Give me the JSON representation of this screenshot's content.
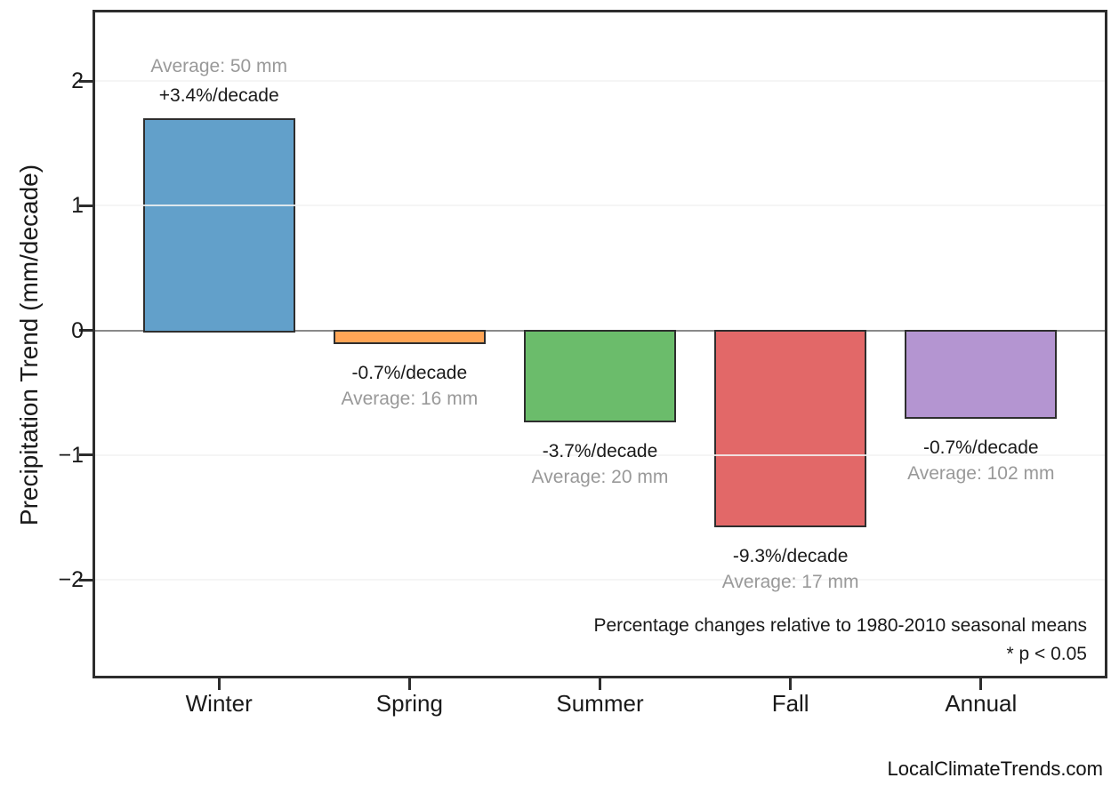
{
  "footer": {
    "watermark": "LocalClimateTrends.com"
  },
  "chart_data": {
    "type": "bar",
    "title": "",
    "xlabel": "",
    "ylabel": "Precipitation Trend (mm/decade)",
    "categories": [
      "Winter",
      "Spring",
      "Summer",
      "Fall",
      "Annual"
    ],
    "values": [
      1.7,
      -0.11,
      -0.74,
      -1.58,
      -0.71
    ],
    "bar_labels": [
      "+3.4%/decade",
      "-0.7%/decade",
      "-3.7%/decade",
      "-9.3%/decade",
      "-0.7%/decade"
    ],
    "avg_labels": [
      "Average: 50 mm",
      "Average: 16 mm",
      "Average: 20 mm",
      "Average: 17 mm",
      "Average: 102 mm"
    ],
    "bar_colors": [
      "#62A0CA",
      "#FFA556",
      "#6BBC6B",
      "#E26868",
      "#B495D1"
    ],
    "bar_edge_color": "#2e2e2e",
    "yticks": [
      -2,
      -1,
      0,
      1,
      2
    ],
    "ylim": [
      -2.77,
      2.55
    ],
    "xlim": [
      -0.65,
      4.65
    ],
    "bar_width": 0.8,
    "grid": true,
    "legend": null,
    "annotations": [
      "Percentage changes relative to 1980-2010 seasonal means",
      "* p < 0.05"
    ]
  }
}
